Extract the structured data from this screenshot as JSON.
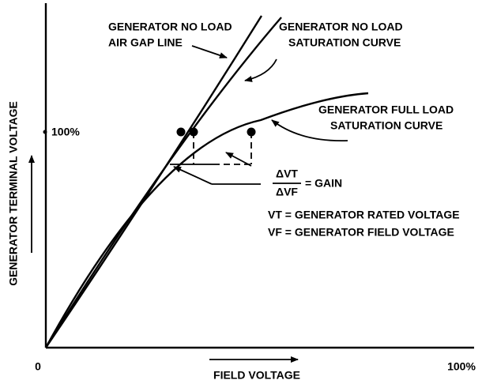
{
  "axes": {
    "y_label": "GENERATOR TERMINAL VOLTAGE",
    "x_label": "FIELD VOLTAGE",
    "origin": "0",
    "y_max": "100%",
    "x_max": "100%"
  },
  "curves": [
    {
      "label": [
        "GENERATOR NO LOAD",
        "AIR GAP LINE"
      ]
    },
    {
      "label": [
        "GENERATOR NO LOAD",
        "SATURATION CURVE"
      ]
    },
    {
      "label": [
        "GENERATOR FULL LOAD",
        "SATURATION CURVE"
      ]
    }
  ],
  "gain": {
    "numerator": "ΔVT",
    "denominator": "ΔVF",
    "equals": "= GAIN"
  },
  "legend": [
    "VT = GENERATOR RATED VOLTAGE",
    "VF = GENERATOR FIELD VOLTAGE"
  ]
}
